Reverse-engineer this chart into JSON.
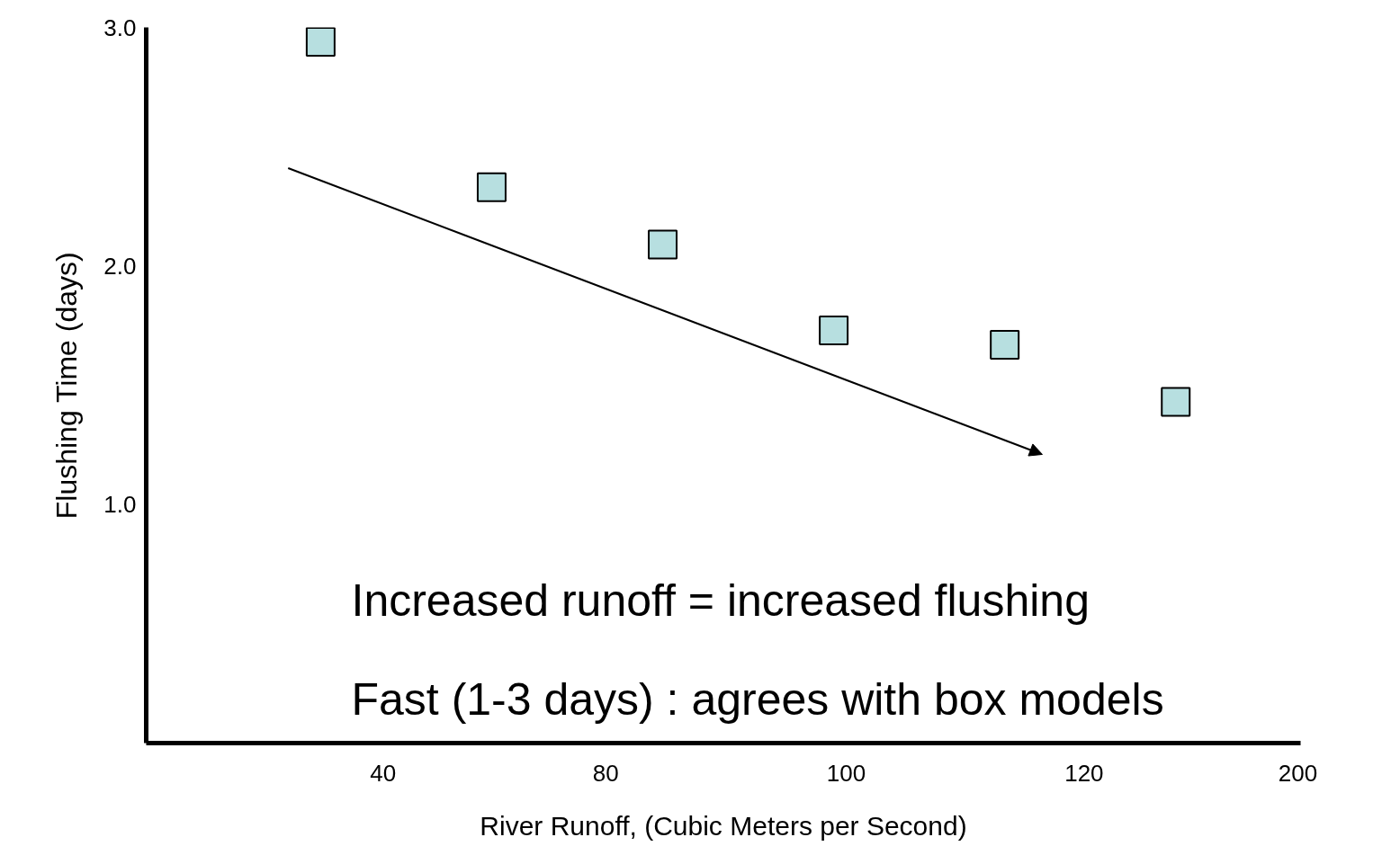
{
  "chart_data": {
    "type": "scatter",
    "xlabel": "River Runoff, (Cubic Meters per Second)",
    "ylabel": "Flushing Time (days)",
    "categories": [
      null,
      null,
      null,
      null,
      null,
      null
    ],
    "color": "#b7dfe0",
    "values": [
      2.94,
      2.33,
      2.09,
      1.73,
      1.67,
      1.43
    ],
    "marker": "square",
    "ylim": [
      0,
      3.0
    ],
    "yticks": [
      {
        "value": 1.0,
        "label": "1.0"
      },
      {
        "value": 2.0,
        "label": "2.0"
      },
      {
        "value": 3.0,
        "label": "3.0"
      }
    ],
    "annotations": [
      "40",
      "80",
      "100",
      "120",
      "200",
      "Increased runoff = increased flushing",
      "Fast (1-3 days) : agrees with box models"
    ],
    "grid": false
  }
}
